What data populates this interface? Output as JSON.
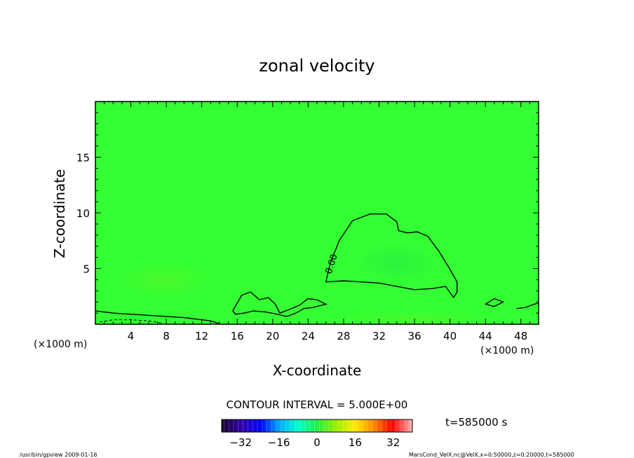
{
  "chart_data": {
    "type": "heatmap",
    "title": "zonal velocity",
    "xlabel": "X-coordinate",
    "ylabel": "Z-coordinate",
    "x_unit_label": "(×1000 m)",
    "y_unit_label": "(×1000 m)",
    "xlim": [
      0,
      50
    ],
    "ylim": [
      0,
      20
    ],
    "x_ticks": [
      4,
      8,
      12,
      16,
      20,
      24,
      28,
      32,
      36,
      40,
      44,
      48
    ],
    "y_ticks": [
      5,
      10,
      15
    ],
    "contour_interval_text": "CONTOUR INTERVAL = 5.000E+00",
    "contour_label": "0.00",
    "time_label": "t=585000 s",
    "colorbar": {
      "min": -40,
      "max": 40,
      "ticks": [
        -32,
        -16,
        0,
        16,
        32
      ],
      "colors": [
        "#1a0033",
        "#3300aa",
        "#0000ff",
        "#00aaff",
        "#00ffcc",
        "#22ee44",
        "#99ee00",
        "#ffee00",
        "#ff8800",
        "#ff0000",
        "#ffaaaa"
      ]
    },
    "field_color": "#33ff33",
    "zero_contour": [
      {
        "points": [
          [
            0,
            1.2
          ],
          [
            2,
            1.0
          ],
          [
            6,
            0.8
          ],
          [
            10,
            0.6
          ],
          [
            13,
            0.3
          ],
          [
            14,
            0.05
          ]
        ]
      },
      {
        "points": [
          [
            15.5,
            1.2
          ],
          [
            16.5,
            2.6
          ],
          [
            17.5,
            2.9
          ],
          [
            18.5,
            2.2
          ],
          [
            19.5,
            2.4
          ],
          [
            20.3,
            1.8
          ],
          [
            20.8,
            1.0
          ],
          [
            21.8,
            1.3
          ],
          [
            23,
            1.7
          ],
          [
            24,
            2.3
          ],
          [
            25,
            2.2
          ],
          [
            26,
            1.8
          ],
          [
            24.5,
            1.5
          ],
          [
            23.5,
            1.4
          ],
          [
            22.6,
            1.0
          ],
          [
            21.6,
            0.7
          ],
          [
            20.5,
            0.9
          ],
          [
            19.2,
            1.1
          ],
          [
            17.8,
            1.2
          ],
          [
            16.8,
            1.0
          ],
          [
            15.8,
            0.9
          ],
          [
            15.5,
            1.2
          ]
        ]
      },
      {
        "points": [
          [
            26,
            3.8
          ],
          [
            26.5,
            5.5
          ],
          [
            27.5,
            7.5
          ],
          [
            29,
            9.3
          ],
          [
            31,
            9.9
          ],
          [
            32.8,
            9.9
          ],
          [
            34,
            9.2
          ],
          [
            34.2,
            8.4
          ],
          [
            35.2,
            8.2
          ],
          [
            36.3,
            8.3
          ],
          [
            37.5,
            7.9
          ],
          [
            38.8,
            6.5
          ],
          [
            39.8,
            5.2
          ],
          [
            40.8,
            3.8
          ],
          [
            40.8,
            2.9
          ],
          [
            40.4,
            2.4
          ],
          [
            39.5,
            3.4
          ],
          [
            38,
            3.2
          ],
          [
            36,
            3.1
          ],
          [
            34,
            3.4
          ],
          [
            32,
            3.7
          ],
          [
            30,
            3.8
          ],
          [
            28,
            3.9
          ],
          [
            26,
            3.8
          ]
        ]
      },
      {
        "points": [
          [
            44,
            1.8
          ],
          [
            45,
            2.3
          ],
          [
            46,
            2.0
          ],
          [
            45,
            1.6
          ],
          [
            44,
            1.8
          ]
        ]
      },
      {
        "points": [
          [
            47.5,
            1.4
          ],
          [
            48.5,
            1.5
          ],
          [
            49.5,
            1.8
          ],
          [
            50,
            1.9
          ]
        ]
      }
    ],
    "dashed_contour": [
      {
        "points": [
          [
            0.5,
            0.2
          ],
          [
            2,
            0.4
          ],
          [
            4,
            0.4
          ],
          [
            6,
            0.3
          ],
          [
            7.5,
            0.1
          ]
        ]
      }
    ]
  },
  "footer": {
    "left_text": "/usr/bin/gpview   2009-01-16",
    "right_text": "MarsCond_VelX.nc@VelX,x=0:50000,z=0:20000,t=585000"
  }
}
